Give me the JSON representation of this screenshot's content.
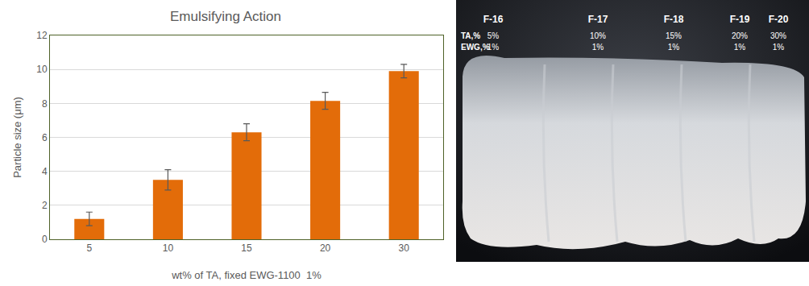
{
  "chart_data": {
    "type": "bar",
    "title": "Emulsifying Action",
    "x_label": "wt% of TA, fixed EWG-1100  1%",
    "y_label": "Particle size (μm)",
    "categories": [
      "5",
      "10",
      "15",
      "20",
      "30"
    ],
    "values": [
      1.2,
      3.5,
      6.3,
      8.15,
      9.9
    ],
    "errors": [
      0.4,
      0.6,
      0.5,
      0.5,
      0.4
    ],
    "color": "#e36c09",
    "ylim": [
      0,
      12
    ],
    "yticks": [
      0,
      2,
      4,
      6,
      8,
      10,
      12
    ],
    "grid": true
  },
  "photo": {
    "row_labels": [
      "TA,%",
      "EWG,%"
    ],
    "samples": [
      {
        "label": "F-16",
        "TA": "5%",
        "EWG": "1%"
      },
      {
        "label": "F-17",
        "TA": "10%",
        "EWG": "1%"
      },
      {
        "label": "F-18",
        "TA": "15%",
        "EWG": "1%"
      },
      {
        "label": "F-19",
        "TA": "20%",
        "EWG": "1%"
      },
      {
        "label": "F-20",
        "TA": "30%",
        "EWG": "1%"
      }
    ]
  }
}
